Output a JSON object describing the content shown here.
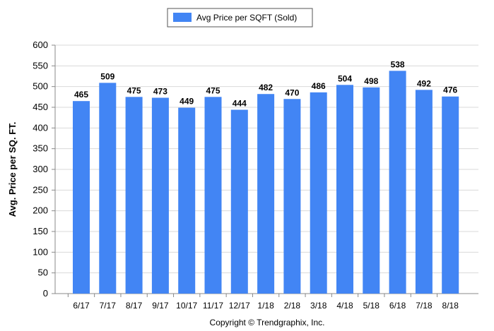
{
  "chart_data": {
    "type": "bar",
    "categories": [
      "6/17",
      "7/17",
      "8/17",
      "9/17",
      "10/17",
      "11/17",
      "12/17",
      "1/18",
      "2/18",
      "3/18",
      "4/18",
      "5/18",
      "6/18",
      "7/18",
      "8/18"
    ],
    "series": [
      {
        "name": "Avg Price per SQFT (Sold)",
        "color": "#4285f4",
        "values": [
          465,
          509,
          475,
          473,
          449,
          475,
          444,
          482,
          470,
          486,
          504,
          498,
          538,
          492,
          476
        ]
      }
    ],
    "ylabel": "Avg. Price per SQ. FT.",
    "ylim": [
      0,
      600
    ],
    "yticks": [
      "0",
      "50",
      "100",
      "150",
      "200",
      "250",
      "300",
      "350",
      "400",
      "450",
      "500",
      "550",
      "600"
    ],
    "grid": true,
    "legend_position": "top-center"
  },
  "footer": {
    "copyright": "Copyright © Trendgraphix, Inc."
  }
}
